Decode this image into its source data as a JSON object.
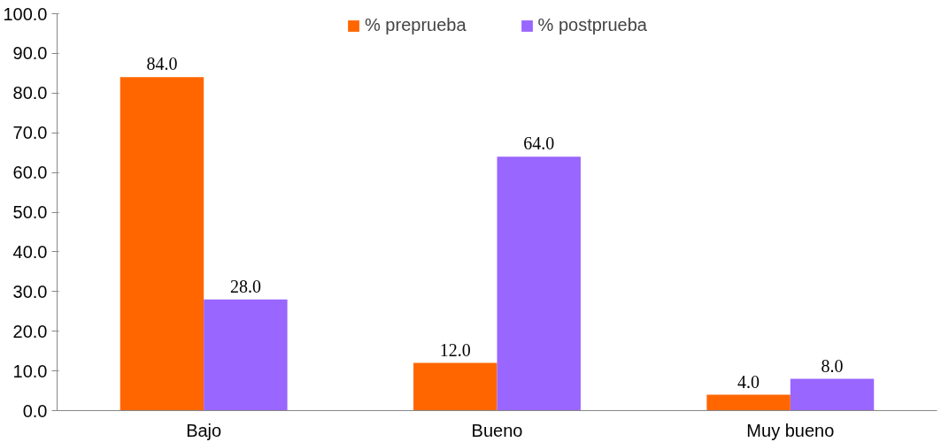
{
  "chart_data": {
    "type": "bar",
    "categories": [
      "Bajo",
      "Bueno",
      "Muy bueno"
    ],
    "series": [
      {
        "name": "% preprueba",
        "color": "#ff6600",
        "values": [
          84,
          12,
          4
        ],
        "value_labels": [
          "84.0",
          "12.0",
          "4.0"
        ]
      },
      {
        "name": "% postprueba",
        "color": "#9966ff",
        "values": [
          28,
          64,
          8
        ],
        "value_labels": [
          "28.0",
          "64.0",
          "8.0"
        ]
      }
    ],
    "ylim": [
      0,
      100
    ],
    "yticks": [
      {
        "value": 0,
        "label": "0.0"
      },
      {
        "value": 10,
        "label": "10.0"
      },
      {
        "value": 20,
        "label": "20.0"
      },
      {
        "value": 30,
        "label": "30.0"
      },
      {
        "value": 40,
        "label": "40.0"
      },
      {
        "value": 50,
        "label": "50.0"
      },
      {
        "value": 60,
        "label": "60.0"
      },
      {
        "value": 70,
        "label": "70.0"
      },
      {
        "value": 80,
        "label": "80.0"
      },
      {
        "value": 90,
        "label": "90.0"
      },
      {
        "value": 100,
        "label": "100.0"
      }
    ],
    "grid": false,
    "legend": "top"
  }
}
